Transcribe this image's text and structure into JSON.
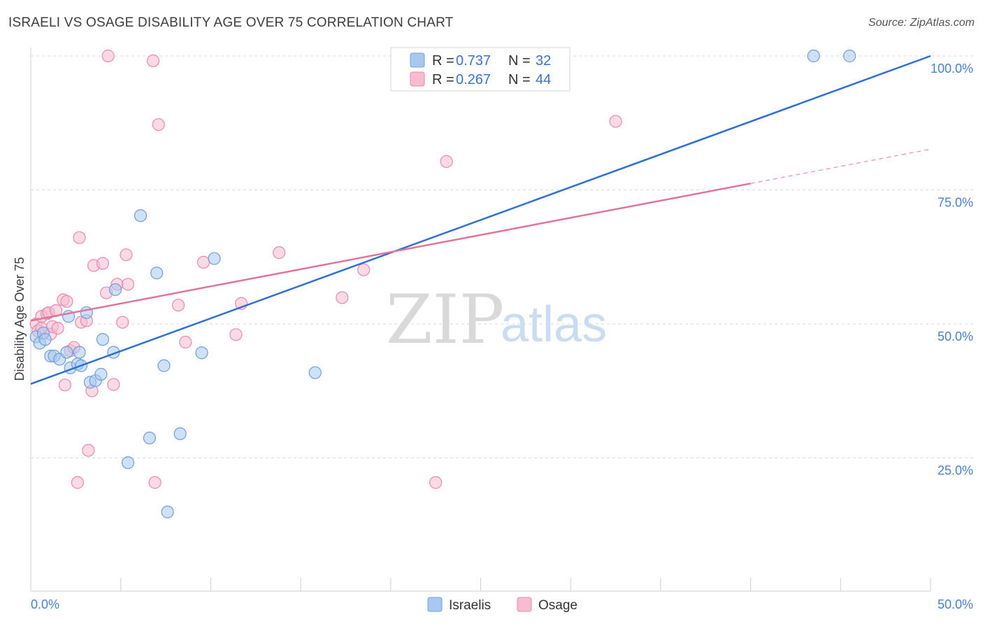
{
  "title": "ISRAELI VS OSAGE DISABILITY AGE OVER 75 CORRELATION CHART",
  "source": "Source: ZipAtlas.com",
  "watermark": {
    "part1": "ZIP",
    "part2": "atlas"
  },
  "colors": {
    "israelis_fill": "#a8c8f0",
    "israelis_stroke": "#6f9fd8",
    "israelis_line": "#2f6fcf",
    "osage_fill": "#f7bcd0",
    "osage_stroke": "#e98aab",
    "osage_line": "#e0739a",
    "grid": "#d9d9d9",
    "tick_label": "#4a7fcf"
  },
  "legend": {
    "rows": [
      {
        "r_label": "R = ",
        "r_value": "0.737",
        "n_label": "N = ",
        "n_value": "32"
      },
      {
        "r_label": "R = ",
        "r_value": "0.267",
        "n_label": "N = ",
        "n_value": "44"
      }
    ]
  },
  "chart_data": {
    "type": "scatter",
    "xlabel": "",
    "ylabel": "Disability Age Over 75",
    "xlim": [
      0,
      50
    ],
    "ylim": [
      0,
      100
    ],
    "x_tick_labels": {
      "left": "0.0%",
      "right": "50.0%"
    },
    "y_ticks": [
      25,
      50,
      75,
      100
    ],
    "y_tick_labels": [
      "25.0%",
      "50.0%",
      "75.0%",
      "100.0%"
    ],
    "grid": true,
    "series": [
      {
        "name": "Israelis",
        "points": [
          [
            0.3,
            47.6
          ],
          [
            0.5,
            46.4
          ],
          [
            0.7,
            48.3
          ],
          [
            0.8,
            47.1
          ],
          [
            1.1,
            44.0
          ],
          [
            1.3,
            44.0
          ],
          [
            1.6,
            43.4
          ],
          [
            2.0,
            44.7
          ],
          [
            2.1,
            51.4
          ],
          [
            2.2,
            41.8
          ],
          [
            2.6,
            42.5
          ],
          [
            2.7,
            44.7
          ],
          [
            2.8,
            42.2
          ],
          [
            3.1,
            52.1
          ],
          [
            3.3,
            39.1
          ],
          [
            3.6,
            39.4
          ],
          [
            3.9,
            40.6
          ],
          [
            4.0,
            47.1
          ],
          [
            4.6,
            44.7
          ],
          [
            4.7,
            56.4
          ],
          [
            5.4,
            24.1
          ],
          [
            6.1,
            70.2
          ],
          [
            6.6,
            28.7
          ],
          [
            7.0,
            59.5
          ],
          [
            7.4,
            42.2
          ],
          [
            7.6,
            14.9
          ],
          [
            8.3,
            29.5
          ],
          [
            9.5,
            44.6
          ],
          [
            10.2,
            62.2
          ],
          [
            15.8,
            40.9
          ],
          [
            43.5,
            100.0
          ],
          [
            45.5,
            100.0
          ]
        ],
        "trend": {
          "x": [
            0,
            50
          ],
          "y": [
            38.8,
            100.0
          ]
        }
      },
      {
        "name": "Osage",
        "points": [
          [
            0.3,
            50.0
          ],
          [
            0.4,
            48.7
          ],
          [
            0.6,
            49.2
          ],
          [
            0.6,
            51.4
          ],
          [
            0.9,
            51.9
          ],
          [
            1.0,
            52.1
          ],
          [
            1.1,
            48.1
          ],
          [
            1.2,
            49.5
          ],
          [
            1.4,
            52.5
          ],
          [
            1.5,
            49.2
          ],
          [
            1.8,
            54.5
          ],
          [
            1.9,
            38.6
          ],
          [
            2.0,
            54.2
          ],
          [
            2.2,
            45.0
          ],
          [
            2.4,
            45.6
          ],
          [
            2.6,
            20.4
          ],
          [
            2.7,
            66.1
          ],
          [
            2.8,
            50.3
          ],
          [
            3.1,
            50.6
          ],
          [
            3.2,
            26.4
          ],
          [
            3.4,
            37.5
          ],
          [
            3.5,
            60.9
          ],
          [
            4.0,
            61.3
          ],
          [
            4.2,
            55.8
          ],
          [
            4.3,
            100.0
          ],
          [
            4.6,
            38.7
          ],
          [
            4.8,
            57.4
          ],
          [
            5.1,
            50.3
          ],
          [
            5.3,
            62.9
          ],
          [
            5.4,
            57.4
          ],
          [
            6.8,
            99.1
          ],
          [
            6.9,
            20.4
          ],
          [
            7.1,
            87.2
          ],
          [
            8.2,
            53.5
          ],
          [
            8.6,
            46.6
          ],
          [
            9.6,
            61.5
          ],
          [
            11.4,
            48.0
          ],
          [
            11.7,
            53.8
          ],
          [
            13.8,
            63.3
          ],
          [
            17.3,
            54.9
          ],
          [
            18.5,
            60.1
          ],
          [
            22.5,
            20.4
          ],
          [
            23.1,
            80.3
          ],
          [
            32.5,
            87.8
          ]
        ],
        "trend": {
          "x": [
            0,
            40
          ],
          "y": [
            50.6,
            76.2
          ]
        },
        "trend_extension": {
          "x": [
            40,
            50
          ],
          "y": [
            76.2,
            82.6
          ]
        }
      }
    ]
  }
}
